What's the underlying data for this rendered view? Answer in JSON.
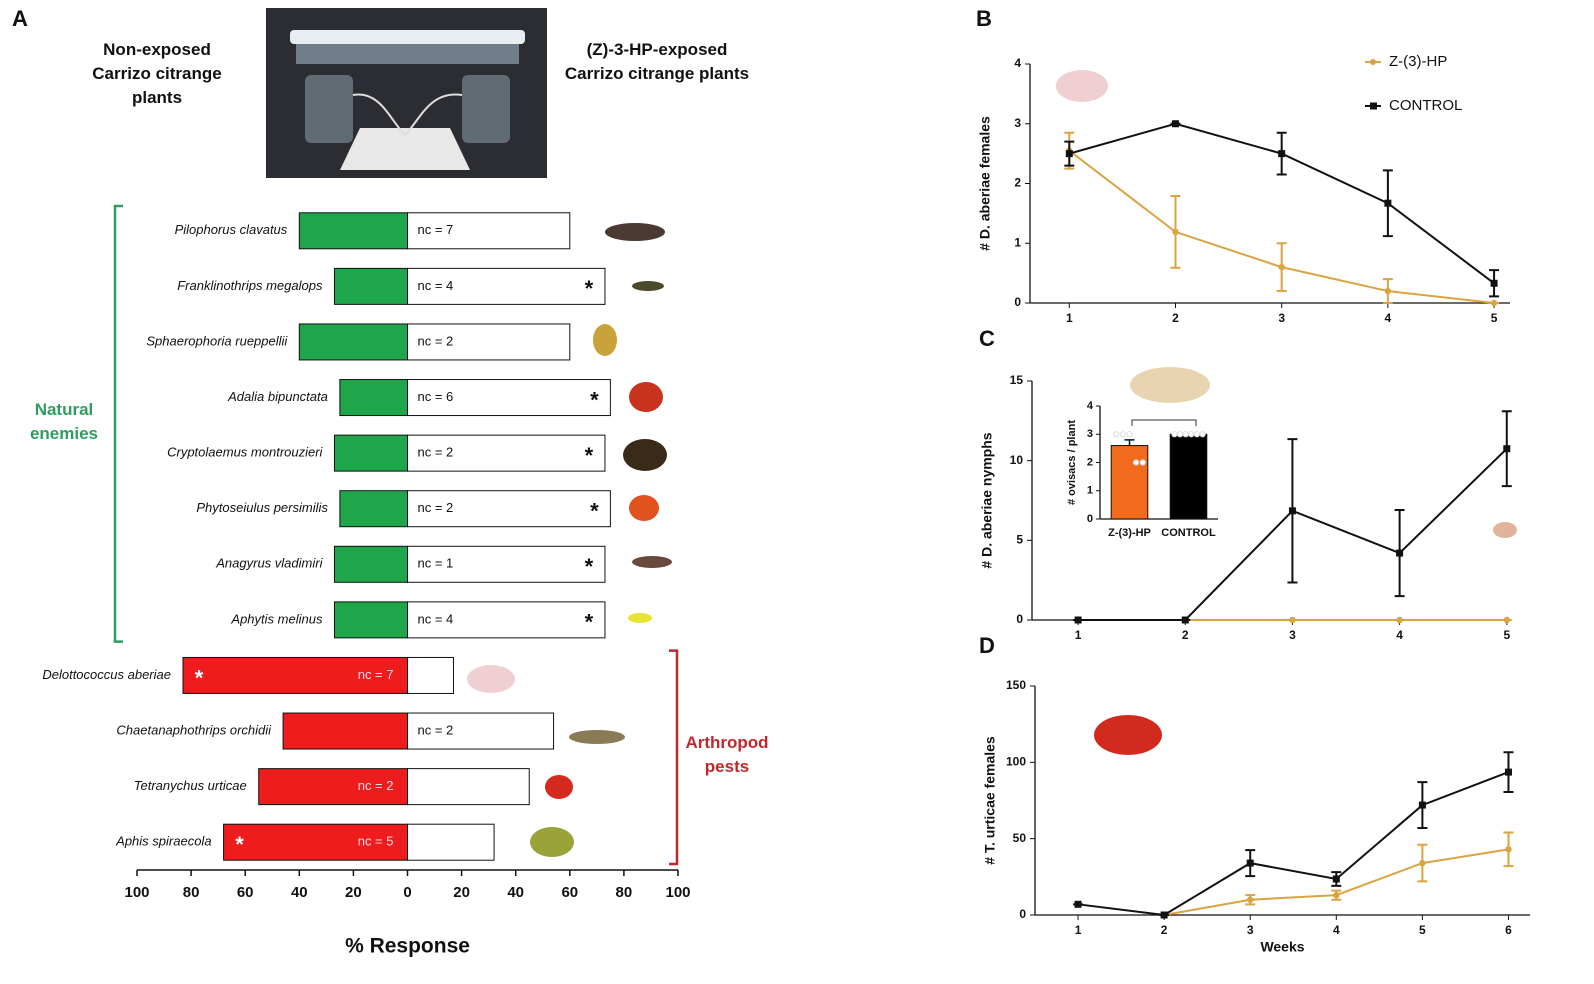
{
  "chart_data": [
    {
      "type": "diverging_bar",
      "panel": "A",
      "categories": [
        "Pilophorus clavatus",
        "Franklinothrips megalops",
        "Sphaerophoria rueppellii",
        "Adalia bipunctata",
        "Cryptolaemus montrouzieri",
        "Phytoseiulus persimilis",
        "Anagyrus vladimiri",
        "Aphytis melinus",
        "Delottococcus aberiae",
        "Chaetanaphothrips orchidii",
        "Tetranychus urticae",
        "Aphis spiraecola"
      ],
      "series": [
        {
          "name": "Non-exposed Carrizo citrange plants",
          "colors": [
            "#1fa64a",
            "#1fa64a",
            "#1fa64a",
            "#1fa64a",
            "#1fa64a",
            "#1fa64a",
            "#1fa64a",
            "#1fa64a",
            "#ee1c1c",
            "#ee1c1c",
            "#ee1c1c",
            "#ee1c1c"
          ],
          "values": [
            -40,
            -27,
            -40,
            -25,
            -27,
            -25,
            -27,
            -27,
            -83,
            -46,
            -55,
            -68
          ]
        },
        {
          "name": "(Z)-3-HP-exposed Carrizo citrange plants",
          "color": "#ffffff",
          "values": [
            60,
            73,
            60,
            75,
            73,
            75,
            73,
            73,
            17,
            54,
            45,
            32
          ]
        }
      ],
      "annotations": [
        "nc = 7",
        "nc = 4",
        "nc = 2",
        "nc = 6",
        "nc = 2",
        "nc = 2",
        "nc = 1",
        "nc = 4",
        "nc = 7",
        "nc = 2",
        "nc = 2",
        "nc = 5"
      ],
      "significance": [
        null,
        "*",
        null,
        "*",
        "*",
        "*",
        "*",
        "*",
        "*",
        null,
        null,
        "*"
      ],
      "groups": [
        {
          "name": "Natural enemies",
          "color": "#2e9e5e",
          "size": 8
        },
        {
          "name": "Arthropod pests",
          "color": "#c0282e",
          "size": 4
        }
      ],
      "xlabel": "% Response",
      "xlim": [
        -100,
        100
      ],
      "xticks": [
        {
          "value": -100,
          "label": "100"
        },
        {
          "value": -80,
          "label": "80"
        },
        {
          "value": -60,
          "label": "60"
        },
        {
          "value": -40,
          "label": "40"
        },
        {
          "value": -20,
          "label": "20"
        },
        0,
        20,
        40,
        60,
        80,
        100
      ]
    },
    {
      "type": "line",
      "panel": "B",
      "ylabel": "# D. aberiae females",
      "x": [
        1,
        2,
        3,
        4,
        5
      ],
      "xlim": [
        0.63,
        5.15
      ],
      "xticks": [
        1,
        2,
        3,
        4,
        5
      ],
      "ylim": [
        0,
        4
      ],
      "yticks": [
        0,
        1,
        2,
        3,
        4
      ],
      "legend": "top-right",
      "series": [
        {
          "name": "Z-(3)-HP",
          "color": "#d9a441",
          "marker": "circle",
          "values": [
            2.55,
            1.19,
            0.6,
            0.2,
            0
          ],
          "errors": [
            0.3,
            0.6,
            0.4,
            0.2,
            0
          ]
        },
        {
          "name": "CONTROL",
          "color": "#111111",
          "marker": "square",
          "values": [
            2.5,
            3,
            2.5,
            1.67,
            0.33
          ],
          "errors": [
            0.2,
            0,
            0.35,
            0.55,
            0.22
          ]
        }
      ]
    },
    {
      "type": "line",
      "panel": "C",
      "ylabel": "# D. aberiae nymphs",
      "x": [
        1,
        2,
        3,
        4,
        5
      ],
      "xlim": [
        0.57,
        5.03
      ],
      "xticks": [
        1,
        2,
        3,
        4,
        5
      ],
      "ylim": [
        0,
        15
      ],
      "yticks": [
        0,
        5,
        10,
        15
      ],
      "series": [
        {
          "name": "Z-(3)-HP",
          "color": "#d9a441",
          "marker": "circle",
          "values": [
            null,
            0,
            0,
            0,
            0
          ],
          "errors": [
            null,
            0,
            0,
            0,
            0
          ]
        },
        {
          "name": "CONTROL",
          "color": "#111111",
          "marker": "square",
          "values": [
            0,
            0,
            6.85,
            4.2,
            10.75
          ],
          "errors": [
            0,
            0,
            4.5,
            2.7,
            2.35
          ]
        }
      ],
      "inset": {
        "type": "bar",
        "ylabel": "# ovisacs / plant",
        "categories": [
          "Z-(3)-HP",
          "CONTROL"
        ],
        "values": [
          2.6,
          3
        ],
        "errors": [
          0.2,
          0
        ],
        "colors": [
          "#f26b1d",
          "#000000"
        ],
        "points": [
          [
            3,
            3,
            3,
            2,
            2
          ],
          [
            3,
            3,
            3,
            3,
            3,
            3
          ]
        ],
        "ylim": [
          0,
          4
        ],
        "yticks": [
          0,
          1,
          2,
          3,
          4
        ]
      }
    },
    {
      "type": "line",
      "panel": "D",
      "ylabel": "# T. urticae females",
      "xlabel": "Weeks",
      "x": [
        1,
        2,
        3,
        4,
        5,
        6
      ],
      "xlim": [
        0.5,
        6.25
      ],
      "xticks": [
        1,
        2,
        3,
        4,
        5,
        6
      ],
      "ylim": [
        0,
        150
      ],
      "yticks": [
        0,
        50,
        100,
        150
      ],
      "series": [
        {
          "name": "Z-(3)-HP",
          "color": "#d9a441",
          "marker": "circle",
          "values": [
            null,
            0,
            10,
            13,
            34,
            43
          ],
          "errors": [
            null,
            0,
            3,
            3,
            12,
            11
          ]
        },
        {
          "name": "CONTROL",
          "color": "#111111",
          "marker": "square",
          "values": [
            7,
            0,
            34,
            23.6,
            72,
            93.6
          ],
          "errors": [
            0,
            0,
            8.5,
            4.5,
            15,
            13
          ]
        }
      ]
    }
  ]
}
